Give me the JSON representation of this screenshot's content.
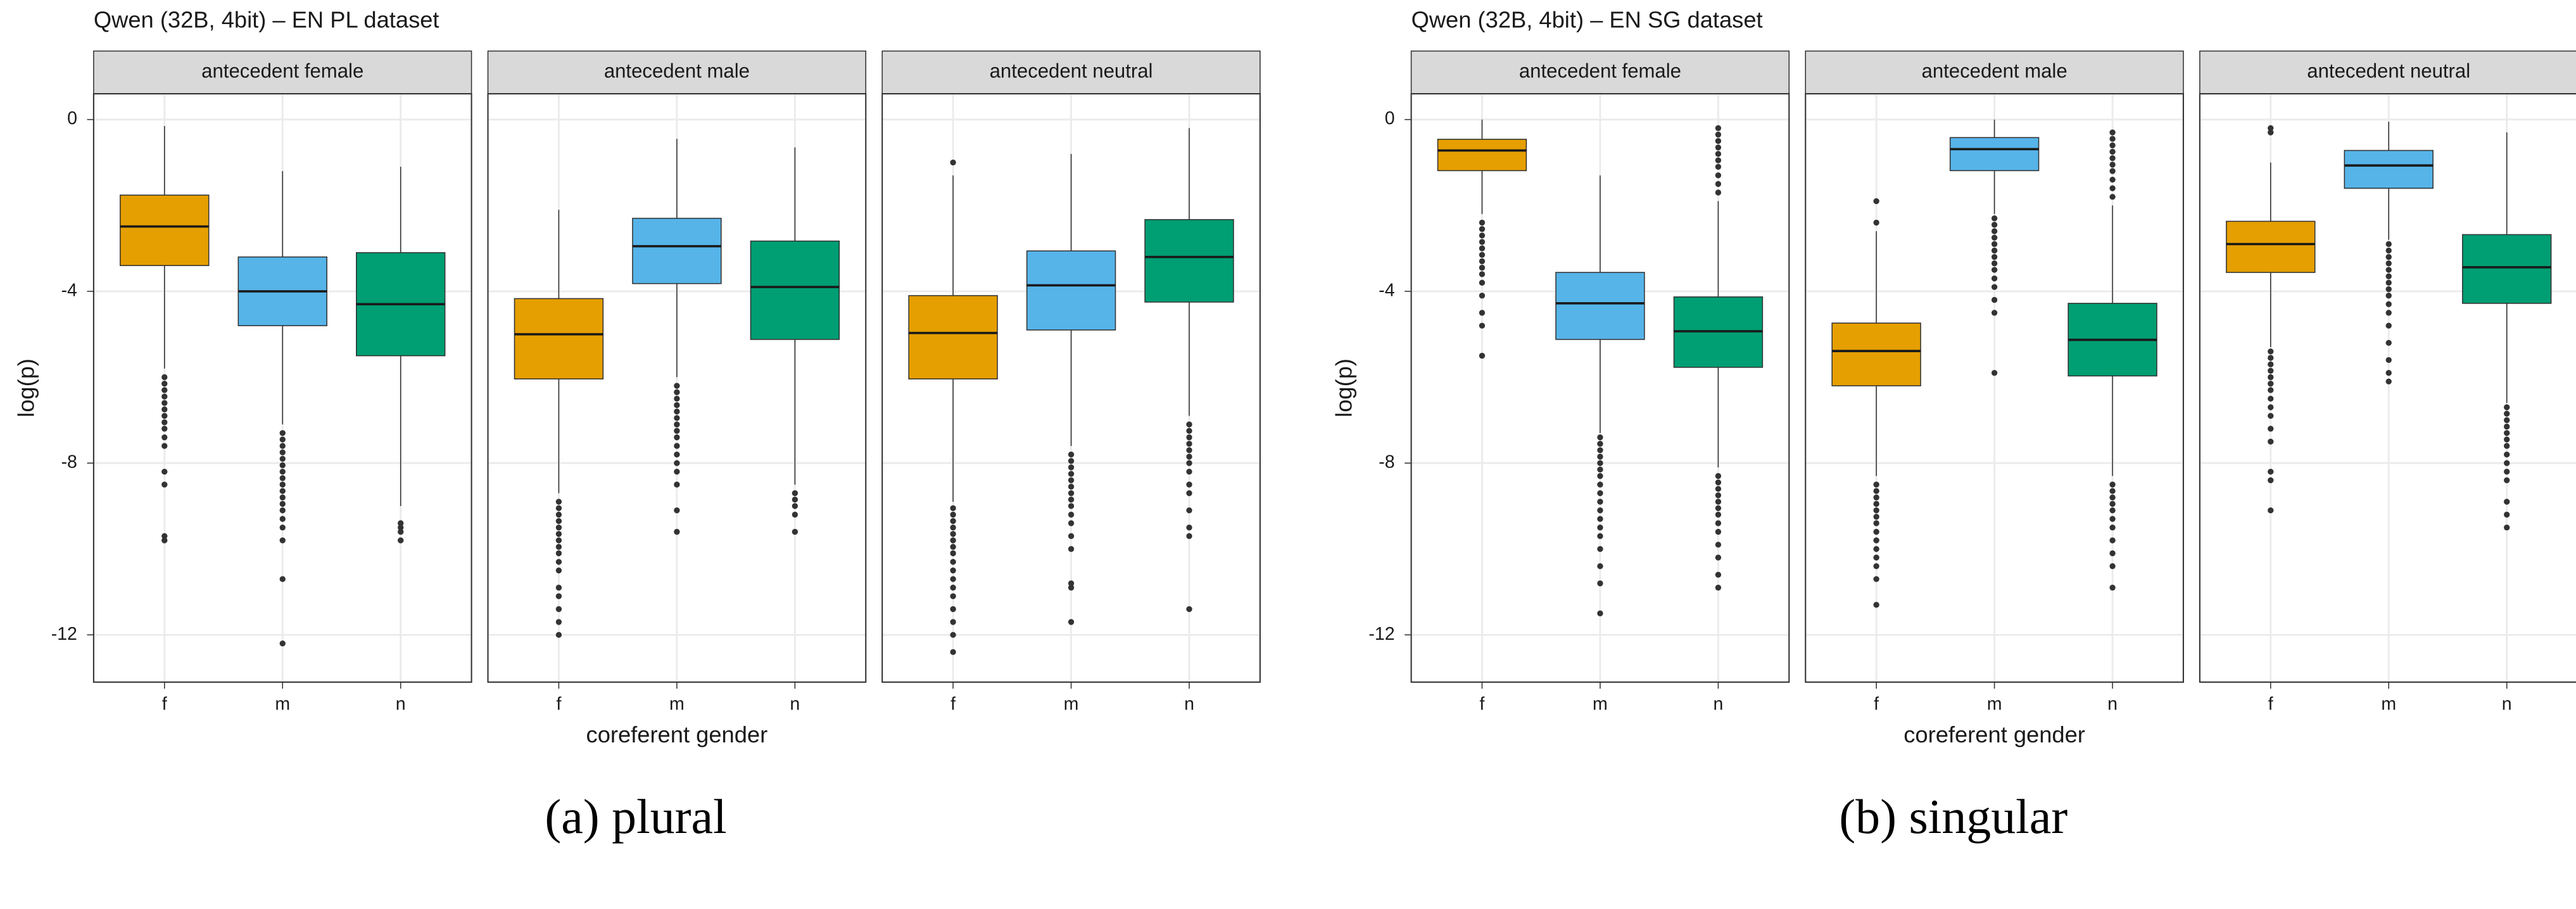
{
  "chart_data": [
    {
      "type": "boxplot",
      "title": "Qwen (32B, 4bit) – EN PL dataset",
      "caption": "(a) plural",
      "xlabel": "coreferent gender",
      "ylabel": "log(p)",
      "ylim": [
        -13.1,
        0.6
      ],
      "yticks": [
        0,
        -4,
        -8,
        -12
      ],
      "grid": true,
      "colors": [
        "#E69F00",
        "#56B4E9",
        "#009E73"
      ],
      "panels": [
        {
          "title": "antecedent female",
          "categories": [
            "f",
            "m",
            "n"
          ],
          "boxes": [
            {
              "whislo": -5.8,
              "q1": -3.4,
              "med": -2.49,
              "q3": -1.76,
              "whishi": -0.15,
              "fliers": [
                -6.0,
                -6.15,
                -6.3,
                -6.45,
                -6.6,
                -6.75,
                -6.9,
                -7.05,
                -7.2,
                -7.4,
                -7.6,
                -8.2,
                -8.5,
                -9.7,
                -9.8
              ]
            },
            {
              "whislo": -7.1,
              "q1": -4.8,
              "med": -4.0,
              "q3": -3.2,
              "whishi": -1.2,
              "fliers": [
                -7.3,
                -7.45,
                -7.6,
                -7.75,
                -7.9,
                -8.05,
                -8.2,
                -8.35,
                -8.5,
                -8.65,
                -8.8,
                -8.95,
                -9.1,
                -9.3,
                -9.5,
                -9.8,
                -10.7,
                -12.2
              ]
            },
            {
              "whislo": -9.0,
              "q1": -5.5,
              "med": -4.3,
              "q3": -3.1,
              "whishi": -1.1,
              "fliers": [
                -9.4,
                -9.5,
                -9.6,
                -9.8
              ]
            }
          ]
        },
        {
          "title": "antecedent male",
          "categories": [
            "f",
            "m",
            "n"
          ],
          "boxes": [
            {
              "whislo": -8.7,
              "q1": -6.04,
              "med": -5.0,
              "q3": -4.17,
              "whishi": -2.1,
              "fliers": [
                -8.9,
                -9.05,
                -9.2,
                -9.35,
                -9.5,
                -9.65,
                -9.8,
                -9.95,
                -10.1,
                -10.3,
                -10.5,
                -10.9,
                -11.1,
                -11.4,
                -11.7,
                -12.0
              ]
            },
            {
              "whislo": -6.0,
              "q1": -3.82,
              "med": -2.95,
              "q3": -2.3,
              "whishi": -0.45,
              "fliers": [
                -6.2,
                -6.35,
                -6.5,
                -6.65,
                -6.8,
                -6.95,
                -7.1,
                -7.25,
                -7.4,
                -7.6,
                -7.8,
                -8.0,
                -8.2,
                -8.5,
                -9.1,
                -9.6
              ]
            },
            {
              "whislo": -8.5,
              "q1": -5.12,
              "med": -3.9,
              "q3": -2.83,
              "whishi": -0.65,
              "fliers": [
                -8.7,
                -8.85,
                -9.0,
                -9.2,
                -9.6
              ]
            }
          ]
        },
        {
          "title": "antecedent neutral",
          "categories": [
            "f",
            "m",
            "n"
          ],
          "boxes": [
            {
              "whislo": -8.9,
              "q1": -6.04,
              "med": -4.97,
              "q3": -4.1,
              "whishi": -1.3,
              "fliers": [
                -1.0,
                -9.05,
                -9.2,
                -9.35,
                -9.5,
                -9.65,
                -9.8,
                -9.95,
                -10.1,
                -10.3,
                -10.5,
                -10.7,
                -10.9,
                -11.1,
                -11.4,
                -11.7,
                -12.0,
                -12.4
              ]
            },
            {
              "whislo": -7.6,
              "q1": -4.9,
              "med": -3.86,
              "q3": -3.06,
              "whishi": -0.8,
              "fliers": [
                -7.8,
                -7.95,
                -8.1,
                -8.25,
                -8.4,
                -8.55,
                -8.7,
                -8.85,
                -9.0,
                -9.2,
                -9.4,
                -9.7,
                -10.0,
                -10.8,
                -10.9,
                -11.7
              ]
            },
            {
              "whislo": -6.9,
              "q1": -4.25,
              "med": -3.2,
              "q3": -2.33,
              "whishi": -0.2,
              "fliers": [
                -7.1,
                -7.25,
                -7.4,
                -7.55,
                -7.7,
                -7.85,
                -8.0,
                -8.2,
                -8.5,
                -8.7,
                -9.1,
                -9.5,
                -9.7,
                -11.4
              ]
            }
          ]
        }
      ]
    },
    {
      "type": "boxplot",
      "title": "Qwen (32B, 4bit) – EN SG dataset",
      "caption": "(b) singular",
      "xlabel": "coreferent gender",
      "ylabel": "log(p)",
      "ylim": [
        -13.1,
        0.6
      ],
      "yticks": [
        0,
        -4,
        -8,
        -12
      ],
      "grid": true,
      "colors": [
        "#E69F00",
        "#56B4E9",
        "#009E73"
      ],
      "panels": [
        {
          "title": "antecedent female",
          "categories": [
            "f",
            "m",
            "n"
          ],
          "boxes": [
            {
              "whislo": -2.2,
              "q1": -1.19,
              "med": -0.72,
              "q3": -0.46,
              "whishi": 0,
              "fliers": [
                -2.4,
                -2.55,
                -2.7,
                -2.85,
                -3.0,
                -3.15,
                -3.3,
                -3.45,
                -3.6,
                -3.8,
                -4.1,
                -4.5,
                -4.8,
                -5.5
              ]
            },
            {
              "whislo": -7.3,
              "q1": -5.12,
              "med": -4.28,
              "q3": -3.56,
              "whishi": -1.3,
              "fliers": [
                -7.4,
                -7.55,
                -7.7,
                -7.85,
                -8.0,
                -8.15,
                -8.3,
                -8.5,
                -8.7,
                -8.9,
                -9.1,
                -9.3,
                -9.5,
                -9.7,
                -10.0,
                -10.4,
                -10.8,
                -11.5
              ]
            },
            {
              "whislo": -8.1,
              "q1": -5.77,
              "med": -4.93,
              "q3": -4.13,
              "whishi": -1.9,
              "fliers": [
                -0.2,
                -0.35,
                -0.5,
                -0.65,
                -0.8,
                -0.95,
                -1.1,
                -1.3,
                -1.5,
                -1.7,
                -8.3,
                -8.45,
                -8.6,
                -8.75,
                -8.9,
                -9.05,
                -9.2,
                -9.4,
                -9.6,
                -9.9,
                -10.2,
                -10.6,
                -10.9
              ]
            }
          ]
        },
        {
          "title": "antecedent male",
          "categories": [
            "f",
            "m",
            "n"
          ],
          "boxes": [
            {
              "whislo": -8.3,
              "q1": -6.2,
              "med": -5.39,
              "q3": -4.74,
              "whishi": -2.6,
              "fliers": [
                -1.9,
                -2.4,
                -8.5,
                -8.65,
                -8.8,
                -8.95,
                -9.1,
                -9.25,
                -9.4,
                -9.6,
                -9.8,
                -10.0,
                -10.2,
                -10.4,
                -10.7,
                -11.3
              ]
            },
            {
              "whislo": -2.2,
              "q1": -1.19,
              "med": -0.69,
              "q3": -0.42,
              "whishi": 0,
              "fliers": [
                -2.3,
                -2.45,
                -2.6,
                -2.75,
                -2.9,
                -3.05,
                -3.2,
                -3.35,
                -3.5,
                -3.7,
                -3.9,
                -4.2,
                -4.5,
                -5.9
              ]
            },
            {
              "whislo": -8.3,
              "q1": -5.97,
              "med": -5.13,
              "q3": -4.28,
              "whishi": -2.0,
              "fliers": [
                -0.3,
                -0.45,
                -0.6,
                -0.75,
                -0.9,
                -1.05,
                -1.2,
                -1.4,
                -1.6,
                -1.8,
                -8.5,
                -8.65,
                -8.8,
                -8.95,
                -9.1,
                -9.3,
                -9.5,
                -9.8,
                -10.1,
                -10.4,
                -10.9
              ]
            }
          ]
        },
        {
          "title": "antecedent neutral",
          "categories": [
            "f",
            "m",
            "n"
          ],
          "boxes": [
            {
              "whislo": -5.3,
              "q1": -3.56,
              "med": -2.9,
              "q3": -2.37,
              "whishi": -1.0,
              "fliers": [
                -0.2,
                -0.3,
                -5.4,
                -5.55,
                -5.7,
                -5.85,
                -6.0,
                -6.15,
                -6.3,
                -6.5,
                -6.7,
                -6.9,
                -7.2,
                -7.5,
                -8.2,
                -8.4,
                -9.1
              ]
            },
            {
              "whislo": -2.8,
              "q1": -1.6,
              "med": -1.07,
              "q3": -0.72,
              "whishi": -0.05,
              "fliers": [
                -2.9,
                -3.05,
                -3.2,
                -3.35,
                -3.5,
                -3.65,
                -3.8,
                -3.95,
                -4.1,
                -4.3,
                -4.5,
                -4.8,
                -5.2,
                -5.6,
                -5.9,
                -6.1
              ]
            },
            {
              "whislo": -6.6,
              "q1": -4.28,
              "med": -3.44,
              "q3": -2.68,
              "whishi": -0.3,
              "fliers": [
                -6.7,
                -6.85,
                -7.0,
                -7.15,
                -7.3,
                -7.45,
                -7.6,
                -7.8,
                -8.0,
                -8.2,
                -8.4,
                -8.9,
                -9.2,
                -9.5
              ]
            }
          ]
        }
      ]
    }
  ]
}
